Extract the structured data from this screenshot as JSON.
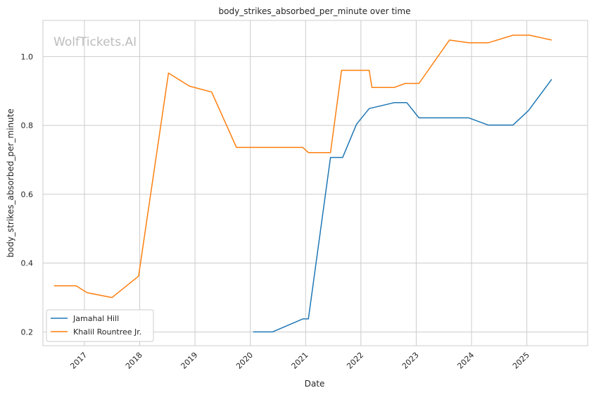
{
  "chart_data": {
    "type": "line",
    "title": "body_strikes_absorbed_per_minute over time",
    "xlabel": "Date",
    "ylabel": "body_strikes_absorbed_per_minute",
    "watermark": "WolfTickets.AI",
    "xlim": [
      2016.25,
      2026.1
    ],
    "ylim": [
      0.16,
      1.105
    ],
    "x_ticks": [
      2017,
      2018,
      2019,
      2020,
      2021,
      2022,
      2023,
      2024,
      2025
    ],
    "x_tick_labels": [
      "2017",
      "2018",
      "2019",
      "2020",
      "2021",
      "2022",
      "2023",
      "2024",
      "2025"
    ],
    "y_ticks": [
      0.2,
      0.4,
      0.6,
      0.8,
      1.0
    ],
    "y_tick_labels": [
      "0.2",
      "0.4",
      "0.6",
      "0.8",
      "1.0"
    ],
    "grid": true,
    "legend_position": "lower-left",
    "series": [
      {
        "name": "Jamahal Hill",
        "color": "#1f77b4",
        "x": [
          2020.05,
          2020.4,
          2020.95,
          2021.05,
          2021.45,
          2021.67,
          2021.92,
          2022.15,
          2022.6,
          2022.83,
          2023.05,
          2023.6,
          2023.95,
          2024.3,
          2024.75,
          2025.03,
          2025.45
        ],
        "y": [
          0.2,
          0.2,
          0.238,
          0.238,
          0.707,
          0.707,
          0.803,
          0.849,
          0.866,
          0.866,
          0.822,
          0.822,
          0.822,
          0.801,
          0.801,
          0.843,
          0.934
        ]
      },
      {
        "name": "Khalil Rountree Jr.",
        "color": "#ff7f0e",
        "x": [
          2016.45,
          2016.85,
          2017.05,
          2017.5,
          2017.98,
          2018.52,
          2018.9,
          2019.3,
          2019.75,
          2020.0,
          2020.95,
          2021.05,
          2021.45,
          2021.65,
          2022.15,
          2022.2,
          2022.6,
          2022.8,
          2023.05,
          2023.6,
          2023.95,
          2024.3,
          2024.75,
          2025.05,
          2025.45
        ],
        "y": [
          0.334,
          0.334,
          0.314,
          0.3,
          0.362,
          0.952,
          0.914,
          0.897,
          0.736,
          0.736,
          0.736,
          0.721,
          0.721,
          0.96,
          0.96,
          0.91,
          0.91,
          0.922,
          0.922,
          1.048,
          1.04,
          1.04,
          1.062,
          1.062,
          1.048
        ]
      }
    ]
  }
}
